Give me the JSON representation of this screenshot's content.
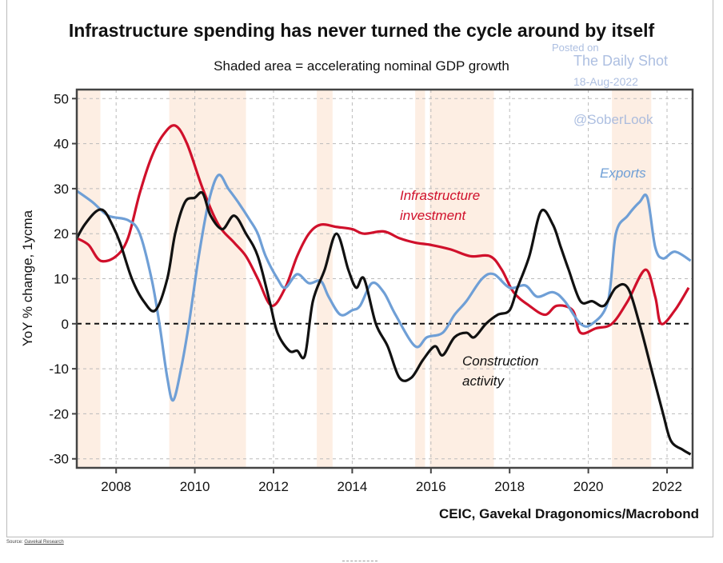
{
  "chart_data": {
    "type": "line",
    "title": "Infrastructure spending has never turned the cycle around by itself",
    "subtitle": "Shaded area = accelerating nominal GDP growth",
    "ylabel": "YoY % change, 1ycma",
    "xlabel": "",
    "xlim": [
      2007.0,
      2022.65
    ],
    "ylim": [
      -32,
      52
    ],
    "yticks": [
      50,
      40,
      30,
      20,
      10,
      0,
      -10,
      -20,
      -30
    ],
    "xticks": [
      2008,
      2010,
      2012,
      2014,
      2016,
      2018,
      2020,
      2022
    ],
    "grid": true,
    "shaded_periods": [
      [
        2007.0,
        2007.6
      ],
      [
        2009.35,
        2011.3
      ],
      [
        2013.1,
        2013.5
      ],
      [
        2015.6,
        2015.85
      ],
      [
        2015.97,
        2017.6
      ],
      [
        2020.6,
        2021.6
      ]
    ],
    "series": [
      {
        "name": "Infrastructure investment",
        "color": "#d0102b",
        "x": [
          2007.0,
          2007.3,
          2007.6,
          2008.0,
          2008.3,
          2008.6,
          2008.9,
          2009.2,
          2009.5,
          2009.8,
          2010.2,
          2010.6,
          2011.0,
          2011.3,
          2011.6,
          2011.95,
          2012.3,
          2012.6,
          2012.9,
          2013.2,
          2013.6,
          2014.0,
          2014.3,
          2014.8,
          2015.2,
          2015.6,
          2016.0,
          2016.5,
          2017.0,
          2017.5,
          2017.8,
          2018.1,
          2018.5,
          2018.9,
          2019.2,
          2019.6,
          2019.8,
          2020.2,
          2020.6,
          2021.0,
          2021.45,
          2021.7,
          2021.85,
          2022.2,
          2022.55
        ],
        "y": [
          19,
          17.5,
          14,
          15,
          19,
          29,
          37,
          42,
          44,
          40,
          30,
          22,
          18,
          15,
          10,
          4,
          8,
          15,
          20,
          22,
          21.5,
          21,
          20,
          20.5,
          19,
          18,
          17.5,
          16.5,
          15,
          15,
          12,
          7,
          4,
          2,
          4,
          3,
          -2,
          -1,
          0,
          5,
          12,
          6,
          0,
          3,
          8
        ]
      },
      {
        "name": "Exports",
        "color": "#6f9fd6",
        "x": [
          2007.0,
          2007.4,
          2007.8,
          2008.3,
          2008.6,
          2008.9,
          2009.1,
          2009.3,
          2009.45,
          2009.65,
          2009.85,
          2010.1,
          2010.35,
          2010.6,
          2010.85,
          2011.1,
          2011.4,
          2011.6,
          2011.8,
          2012.1,
          2012.3,
          2012.6,
          2012.9,
          2013.2,
          2013.4,
          2013.7,
          2014.0,
          2014.2,
          2014.5,
          2014.8,
          2015.1,
          2015.6,
          2015.9,
          2016.3,
          2016.6,
          2016.9,
          2017.3,
          2017.6,
          2018.0,
          2018.4,
          2018.7,
          2019.1,
          2019.4,
          2019.8,
          2020.1,
          2020.5,
          2020.7,
          2021.0,
          2021.3,
          2021.5,
          2021.7,
          2021.9,
          2022.2,
          2022.6
        ],
        "y": [
          29.5,
          27,
          24,
          23,
          20,
          10,
          0,
          -12,
          -17,
          -10,
          0,
          15,
          27,
          33,
          30,
          27,
          23,
          20,
          15,
          10,
          8,
          11,
          9,
          9.5,
          6,
          2,
          3,
          4,
          9,
          7,
          2,
          -5,
          -3,
          -2,
          2,
          5,
          10,
          11,
          8,
          8.5,
          6,
          7,
          5,
          0,
          0,
          5,
          20,
          24,
          27,
          28,
          17,
          14.5,
          16,
          14
        ]
      },
      {
        "name": "Construction activity",
        "color": "#111111",
        "x": [
          2007.0,
          2007.2,
          2007.5,
          2007.7,
          2007.9,
          2008.1,
          2008.4,
          2008.7,
          2009.0,
          2009.3,
          2009.5,
          2009.75,
          2010.0,
          2010.2,
          2010.4,
          2010.7,
          2011.0,
          2011.3,
          2011.6,
          2011.9,
          2012.1,
          2012.4,
          2012.6,
          2012.8,
          2013.0,
          2013.3,
          2013.6,
          2013.9,
          2014.1,
          2014.3,
          2014.6,
          2014.9,
          2015.2,
          2015.5,
          2015.8,
          2016.1,
          2016.3,
          2016.6,
          2016.9,
          2017.1,
          2017.4,
          2017.7,
          2018.0,
          2018.2,
          2018.5,
          2018.8,
          2019.1,
          2019.3,
          2019.5,
          2019.8,
          2020.1,
          2020.4,
          2020.7,
          2021.0,
          2021.3,
          2021.6,
          2021.9,
          2022.1,
          2022.4,
          2022.6
        ],
        "y": [
          19,
          22,
          25,
          25,
          22,
          18,
          10,
          5,
          3,
          10,
          20,
          27,
          28,
          29,
          24,
          21,
          24,
          20,
          15,
          5,
          -2,
          -6,
          -6,
          -7,
          5,
          12,
          20,
          12,
          8,
          10,
          0,
          -5,
          -12,
          -12,
          -8,
          -5,
          -7,
          -3,
          -2,
          -3,
          0,
          2,
          3,
          8,
          15,
          25,
          22,
          17,
          12,
          5,
          5,
          4,
          8,
          8,
          0,
          -10,
          -20,
          -26,
          -28,
          -29
        ]
      }
    ],
    "annotations": {
      "infrastructure_line1": "Infrastructure",
      "infrastructure_line2": "investment",
      "exports": "Exports",
      "construction_line1": "Construction",
      "construction_line2": "activity"
    },
    "credit": "CEIC, Gavekal Dragonomics/Macrobond",
    "watermark": {
      "posted": "Posted on",
      "site": "The Daily Shot",
      "date": "18-Aug-2022",
      "handle": "@SoberLook"
    }
  },
  "footer": {
    "source_label": "Source:",
    "source_link": "Gavekal Research"
  }
}
